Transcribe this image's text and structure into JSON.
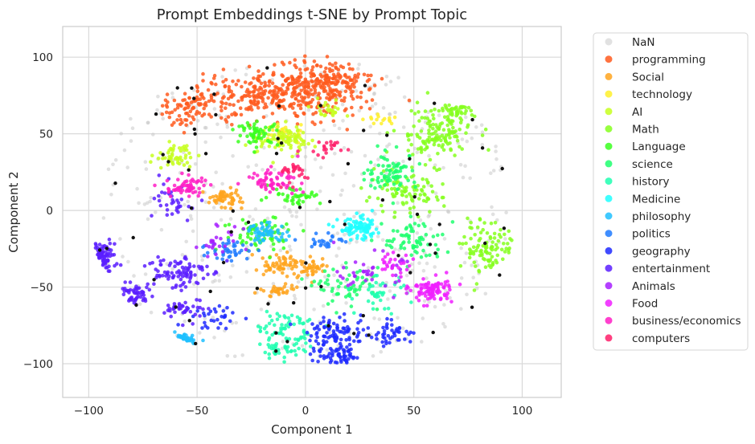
{
  "chart_data": {
    "type": "scatter",
    "title": "Prompt Embeddings t-SNE by Prompt Topic",
    "xlabel": "Component 1",
    "ylabel": "Component 2",
    "xlim": [
      -112,
      118
    ],
    "ylim": [
      -122,
      120
    ],
    "xticks": [
      -100,
      -50,
      0,
      50,
      100
    ],
    "yticks": [
      -100,
      -50,
      0,
      50,
      100
    ],
    "grid": true,
    "legend_position": "outside-right",
    "series": [
      {
        "name": "NaN",
        "color": "#c8c8c8",
        "clusters": [
          [
            0,
            0,
            55,
            48,
            420
          ]
        ]
      },
      {
        "name": "programming",
        "color": "#ff5a1f",
        "clusters": [
          [
            -15,
            75,
            32,
            14,
            360
          ],
          [
            10,
            85,
            18,
            12,
            160
          ],
          [
            -55,
            65,
            10,
            8,
            60
          ]
        ]
      },
      {
        "name": "Social",
        "color": "#ffa51f",
        "clusters": [
          [
            -38,
            8,
            7,
            5,
            60
          ],
          [
            -12,
            -35,
            8,
            6,
            55
          ],
          [
            2,
            -38,
            6,
            5,
            45
          ],
          [
            -12,
            -52,
            6,
            4,
            30
          ]
        ]
      },
      {
        "name": "technology",
        "color": "#fff02a",
        "clusters": [
          [
            -10,
            50,
            8,
            6,
            30
          ],
          [
            35,
            60,
            5,
            4,
            15
          ]
        ]
      },
      {
        "name": "AI",
        "color": "#c7ff1f",
        "clusters": [
          [
            -10,
            47,
            10,
            7,
            90
          ],
          [
            -60,
            35,
            8,
            6,
            50
          ],
          [
            10,
            65,
            6,
            5,
            25
          ]
        ]
      },
      {
        "name": "Math",
        "color": "#86ff1f",
        "clusters": [
          [
            60,
            50,
            15,
            15,
            140
          ],
          [
            85,
            -25,
            10,
            15,
            100
          ],
          [
            45,
            10,
            15,
            10,
            90
          ],
          [
            70,
            65,
            8,
            6,
            40
          ]
        ]
      },
      {
        "name": "Language",
        "color": "#3aff1f",
        "clusters": [
          [
            -22,
            50,
            8,
            6,
            55
          ],
          [
            -20,
            -15,
            15,
            10,
            70
          ],
          [
            -5,
            10,
            10,
            5,
            40
          ]
        ]
      },
      {
        "name": "science",
        "color": "#1fff6e",
        "clusters": [
          [
            40,
            25,
            10,
            10,
            80
          ],
          [
            50,
            -20,
            12,
            12,
            70
          ],
          [
            20,
            -50,
            12,
            10,
            60
          ]
        ]
      },
      {
        "name": "history",
        "color": "#1fffb0",
        "clusters": [
          [
            -10,
            -75,
            12,
            8,
            55
          ],
          [
            -10,
            -90,
            10,
            6,
            45
          ],
          [
            35,
            -55,
            10,
            10,
            40
          ]
        ]
      },
      {
        "name": "Medicine",
        "color": "#1fffff",
        "clusters": [
          [
            25,
            -12,
            8,
            6,
            90
          ]
        ]
      },
      {
        "name": "philosophy",
        "color": "#1fc0ff",
        "clusters": [
          [
            -58,
            -85,
            5,
            4,
            40
          ],
          [
            -18,
            -15,
            8,
            5,
            55
          ]
        ]
      },
      {
        "name": "politics",
        "color": "#1f7aff",
        "clusters": [
          [
            -35,
            -25,
            10,
            6,
            40
          ],
          [
            10,
            -20,
            8,
            5,
            25
          ]
        ]
      },
      {
        "name": "geography",
        "color": "#1f2aff",
        "clusters": [
          [
            15,
            -80,
            12,
            8,
            90
          ],
          [
            15,
            -95,
            10,
            5,
            60
          ],
          [
            40,
            -80,
            8,
            6,
            40
          ],
          [
            -40,
            -70,
            10,
            8,
            30
          ]
        ]
      },
      {
        "name": "entertainment",
        "color": "#5a1fff",
        "clusters": [
          [
            -95,
            -30,
            6,
            8,
            70
          ],
          [
            -60,
            -40,
            12,
            10,
            90
          ],
          [
            -80,
            -55,
            8,
            6,
            50
          ],
          [
            -55,
            -65,
            8,
            6,
            40
          ],
          [
            -60,
            5,
            8,
            10,
            35
          ]
        ]
      },
      {
        "name": "Animals",
        "color": "#a71fff",
        "clusters": [
          [
            30,
            -40,
            12,
            10,
            40
          ],
          [
            -40,
            -20,
            10,
            8,
            25
          ]
        ]
      },
      {
        "name": "Food",
        "color": "#f01fff",
        "clusters": [
          [
            58,
            -52,
            8,
            7,
            90
          ],
          [
            40,
            -35,
            8,
            6,
            25
          ]
        ]
      },
      {
        "name": "business/economics",
        "color": "#ff1fc6",
        "clusters": [
          [
            -55,
            15,
            8,
            6,
            60
          ],
          [
            -15,
            20,
            10,
            6,
            60
          ]
        ]
      },
      {
        "name": "computers",
        "color": "#ff1f6a",
        "clusters": [
          [
            -5,
            25,
            8,
            6,
            25
          ],
          [
            10,
            40,
            8,
            6,
            20
          ]
        ]
      }
    ],
    "outliers_color": "#111111"
  }
}
